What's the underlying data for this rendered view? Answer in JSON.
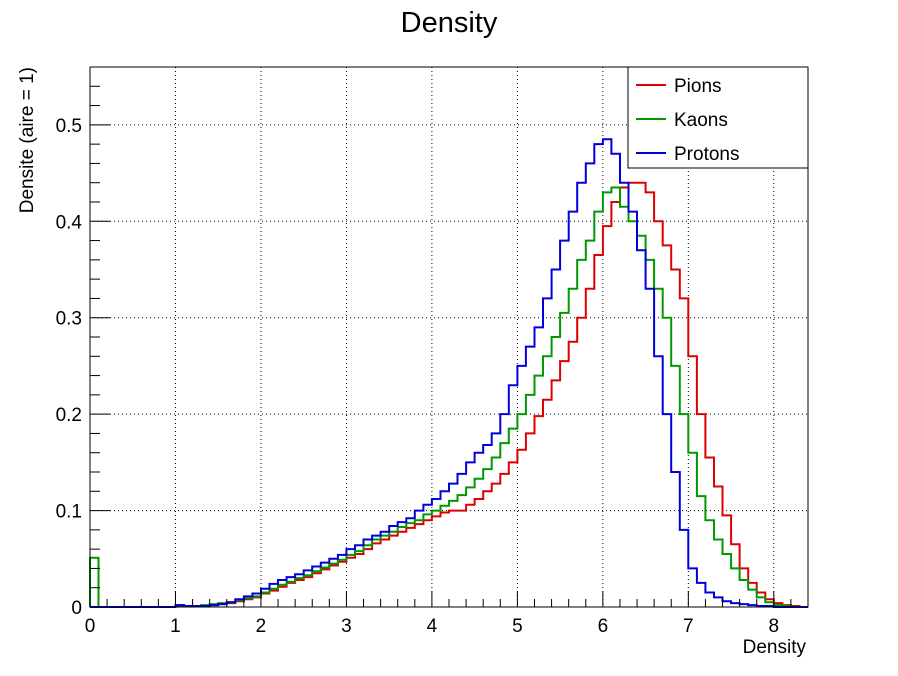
{
  "chart_data": {
    "type": "line",
    "style": "step-histogram",
    "title": "Density",
    "xlabel": "Density",
    "ylabel": "Densite (aire = 1)",
    "xlim": [
      0,
      8.4
    ],
    "ylim": [
      0,
      0.56
    ],
    "x_major_ticks": [
      0,
      1,
      2,
      3,
      4,
      5,
      6,
      7,
      8
    ],
    "x_tick_labels": [
      "0",
      "1",
      "2",
      "3",
      "4",
      "5",
      "6",
      "7",
      "8"
    ],
    "y_major_ticks": [
      0,
      0.1,
      0.2,
      0.3,
      0.4,
      0.5
    ],
    "y_tick_labels": [
      "0",
      "0.1",
      "0.2",
      "0.3",
      "0.4",
      "0.5"
    ],
    "grid": true,
    "legend_position": "top-right",
    "bin_width": 0.1,
    "x": [
      0.0,
      0.1,
      0.2,
      0.3,
      0.4,
      0.5,
      0.6,
      0.7,
      0.8,
      0.9,
      1.0,
      1.1,
      1.2,
      1.3,
      1.4,
      1.5,
      1.6,
      1.7,
      1.8,
      1.9,
      2.0,
      2.1,
      2.2,
      2.3,
      2.4,
      2.5,
      2.6,
      2.7,
      2.8,
      2.9,
      3.0,
      3.1,
      3.2,
      3.3,
      3.4,
      3.5,
      3.6,
      3.7,
      3.8,
      3.9,
      4.0,
      4.1,
      4.2,
      4.3,
      4.4,
      4.5,
      4.6,
      4.7,
      4.8,
      4.9,
      5.0,
      5.1,
      5.2,
      5.3,
      5.4,
      5.5,
      5.6,
      5.7,
      5.8,
      5.9,
      6.0,
      6.1,
      6.2,
      6.3,
      6.4,
      6.5,
      6.6,
      6.7,
      6.8,
      6.9,
      7.0,
      7.1,
      7.2,
      7.3,
      7.4,
      7.5,
      7.6,
      7.7,
      7.8,
      7.9,
      8.0,
      8.1,
      8.2,
      8.3
    ],
    "series": [
      {
        "name": "Pions",
        "color": "#dd0000",
        "values": [
          0.0,
          0.0,
          0.0,
          0.0,
          0.0,
          0.0,
          0.0,
          0.0,
          0.0,
          0.0,
          0.001,
          0.001,
          0.001,
          0.001,
          0.002,
          0.003,
          0.004,
          0.006,
          0.008,
          0.01,
          0.014,
          0.017,
          0.021,
          0.025,
          0.028,
          0.031,
          0.035,
          0.039,
          0.043,
          0.047,
          0.051,
          0.055,
          0.06,
          0.066,
          0.07,
          0.074,
          0.078,
          0.082,
          0.086,
          0.09,
          0.094,
          0.098,
          0.1,
          0.1,
          0.106,
          0.112,
          0.12,
          0.128,
          0.138,
          0.15,
          0.163,
          0.18,
          0.198,
          0.215,
          0.235,
          0.255,
          0.275,
          0.3,
          0.33,
          0.365,
          0.395,
          0.42,
          0.435,
          0.44,
          0.44,
          0.43,
          0.4,
          0.375,
          0.35,
          0.32,
          0.26,
          0.2,
          0.155,
          0.125,
          0.095,
          0.065,
          0.04,
          0.025,
          0.015,
          0.008,
          0.004,
          0.002,
          0.001,
          0.0
        ]
      },
      {
        "name": "Kaons",
        "color": "#009900",
        "values": [
          0.051,
          0.0,
          0.0,
          0.0,
          0.0,
          0.0,
          0.0,
          0.0,
          0.0,
          0.0,
          0.002,
          0.001,
          0.001,
          0.002,
          0.003,
          0.004,
          0.005,
          0.007,
          0.009,
          0.011,
          0.015,
          0.019,
          0.023,
          0.026,
          0.03,
          0.033,
          0.037,
          0.041,
          0.045,
          0.049,
          0.054,
          0.058,
          0.064,
          0.07,
          0.074,
          0.078,
          0.083,
          0.087,
          0.09,
          0.096,
          0.1,
          0.105,
          0.11,
          0.116,
          0.124,
          0.133,
          0.143,
          0.155,
          0.17,
          0.185,
          0.2,
          0.22,
          0.24,
          0.26,
          0.28,
          0.305,
          0.33,
          0.36,
          0.38,
          0.41,
          0.43,
          0.435,
          0.415,
          0.4,
          0.385,
          0.36,
          0.33,
          0.3,
          0.25,
          0.2,
          0.16,
          0.115,
          0.09,
          0.07,
          0.055,
          0.04,
          0.028,
          0.018,
          0.01,
          0.005,
          0.002,
          0.001,
          0.0,
          0.0
        ]
      },
      {
        "name": "Protons",
        "color": "#0000dd",
        "values": [
          0.0,
          0.0,
          0.0,
          0.0,
          0.0,
          0.0,
          0.0,
          0.0,
          0.0,
          0.0,
          0.002,
          0.001,
          0.001,
          0.001,
          0.002,
          0.003,
          0.005,
          0.008,
          0.011,
          0.014,
          0.019,
          0.024,
          0.028,
          0.031,
          0.034,
          0.038,
          0.042,
          0.046,
          0.05,
          0.054,
          0.06,
          0.064,
          0.07,
          0.074,
          0.078,
          0.084,
          0.088,
          0.092,
          0.1,
          0.106,
          0.112,
          0.12,
          0.128,
          0.138,
          0.15,
          0.16,
          0.168,
          0.18,
          0.2,
          0.23,
          0.25,
          0.27,
          0.29,
          0.32,
          0.35,
          0.38,
          0.41,
          0.44,
          0.46,
          0.48,
          0.485,
          0.47,
          0.44,
          0.41,
          0.37,
          0.33,
          0.26,
          0.2,
          0.14,
          0.08,
          0.04,
          0.025,
          0.015,
          0.01,
          0.006,
          0.004,
          0.003,
          0.002,
          0.001,
          0.001,
          0.0,
          0.0,
          0.0,
          0.0
        ]
      }
    ]
  }
}
